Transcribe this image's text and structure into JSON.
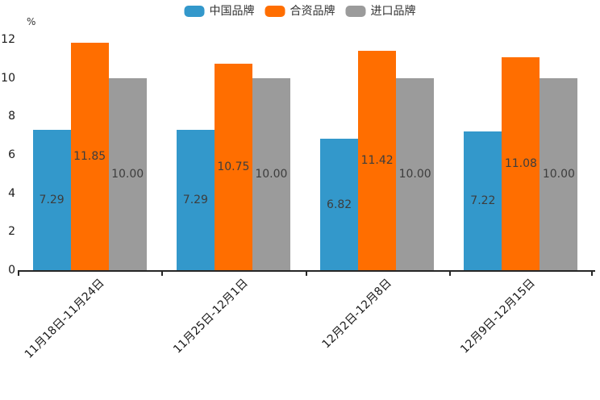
{
  "legend": {
    "items": [
      {
        "label": "中国品牌",
        "color": "#3398cb"
      },
      {
        "label": "合资品牌",
        "color": "#ff6e00"
      },
      {
        "label": "进口品牌",
        "color": "#9b9b9b"
      }
    ]
  },
  "chart_data": {
    "type": "bar",
    "title": "",
    "ylabel": "%",
    "xlabel": "",
    "ylim": [
      0,
      12
    ],
    "yticks": [
      0,
      2,
      4,
      6,
      8,
      10,
      12
    ],
    "grid": false,
    "legend_position": "top",
    "value_labels": true,
    "value_label_decimals": 2,
    "categories": [
      "11月18日-11月24日",
      "11月25日-12月1日",
      "12月2日-12月8日",
      "12月9日-12月15日"
    ],
    "series": [
      {
        "name": "中国品牌",
        "color": "#3398cb",
        "values": [
          7.29,
          7.29,
          6.82,
          7.22
        ]
      },
      {
        "name": "合资品牌",
        "color": "#ff6e00",
        "values": [
          11.85,
          10.75,
          11.42,
          11.08
        ]
      },
      {
        "name": "进口品牌",
        "color": "#9b9b9b",
        "values": [
          10.0,
          10.0,
          10.0,
          10.0
        ]
      }
    ]
  }
}
